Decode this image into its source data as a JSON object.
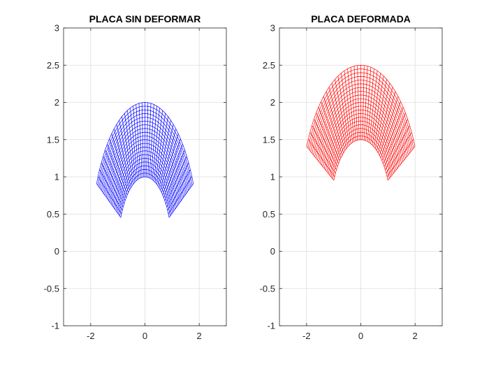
{
  "chart_data": [
    {
      "type": "line",
      "title": "PLACA SIN DEFORMAR",
      "color": "#0000ff",
      "xlim": [
        -3,
        3
      ],
      "ylim": [
        -1,
        3
      ],
      "xticks": [
        -2,
        0,
        2
      ],
      "xtick_labels": [
        "-2",
        "0",
        "2"
      ],
      "yticks": [
        -1,
        -0.5,
        0,
        0.5,
        1,
        1.5,
        2,
        2.5,
        3
      ],
      "ytick_labels": [
        "-1",
        "-0.5",
        "0",
        "0.5",
        "1",
        "1.5",
        "2",
        "2.5",
        "3"
      ],
      "grid": true,
      "mesh": {
        "r_inner": 1.0,
        "r_outer": 2.0,
        "theta_start_deg": 27,
        "theta_end_deg": 153,
        "radial_lines": 41,
        "arc_lines": 21,
        "center": [
          0,
          0
        ],
        "y_scale": 1.0,
        "y_offset": 0.0
      }
    },
    {
      "type": "line",
      "title": "PLACA DEFORMADA",
      "color": "#ff0000",
      "xlim": [
        -3,
        3
      ],
      "ylim": [
        -1,
        3
      ],
      "xticks": [
        -2,
        0,
        2
      ],
      "xtick_labels": [
        "-2",
        "0",
        "2"
      ],
      "yticks": [
        -1,
        -0.5,
        0,
        0.5,
        1,
        1.5,
        2,
        2.5,
        3
      ],
      "ytick_labels": [
        "-1",
        "-0.5",
        "0",
        "0.5",
        "1",
        "1.5",
        "2",
        "2.5",
        "3"
      ],
      "grid": true,
      "mesh": {
        "r_inner": 1.0,
        "r_outer": 2.0,
        "theta_start_deg": 27,
        "theta_end_deg": 153,
        "radial_lines": 41,
        "arc_lines": 21,
        "center": [
          0,
          0
        ],
        "x_scale": 1.12,
        "y_scale": 1.0,
        "y_offset": 0.5
      }
    }
  ]
}
